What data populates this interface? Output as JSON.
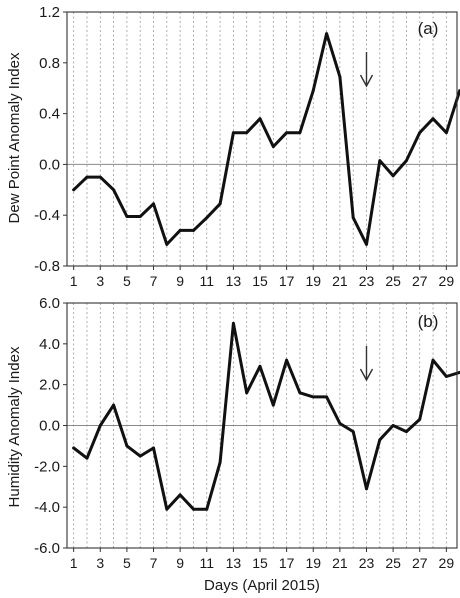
{
  "xlabel": "Days  (April 2015)",
  "chart_data": [
    {
      "type": "line",
      "label": "(a)",
      "ylabel": "Dew Point Anomaly Index",
      "xlim": [
        0.5,
        29.8
      ],
      "ylim": [
        -0.8,
        1.2
      ],
      "yticks": [
        "-0.8",
        "-0.4",
        "0.0",
        "0.4",
        "0.8",
        "1.2"
      ],
      "xticks": [
        "1",
        "3",
        "5",
        "7",
        "9",
        "11",
        "13",
        "15",
        "17",
        "19",
        "21",
        "23",
        "25",
        "27",
        "29"
      ],
      "grid": "vertical dashed, one per day",
      "annotation_arrow_day": 23,
      "series": [
        {
          "x": [
            1,
            2,
            3,
            4,
            5,
            6,
            7,
            8,
            9,
            10,
            11,
            12,
            13,
            14,
            15,
            16,
            17,
            18,
            19,
            20,
            21,
            22,
            23,
            24,
            25,
            26,
            27,
            28,
            29,
            30
          ],
          "values": [
            -0.2,
            -0.1,
            -0.1,
            -0.2,
            -0.41,
            -0.41,
            -0.31,
            -0.63,
            -0.52,
            -0.52,
            -0.42,
            -0.31,
            0.25,
            0.25,
            0.36,
            0.14,
            0.25,
            0.25,
            0.58,
            1.03,
            0.69,
            -0.42,
            -0.63,
            0.03,
            -0.09,
            0.03,
            0.25,
            0.36,
            0.25,
            0.58
          ]
        }
      ]
    },
    {
      "type": "line",
      "label": "(b)",
      "ylabel": "Humidity Anomaly Index",
      "xlim": [
        0.5,
        29.8
      ],
      "ylim": [
        -6.0,
        6.0
      ],
      "yticks": [
        "-6.0",
        "-4.0",
        "-2.0",
        "0.0",
        "2.0",
        "4.0",
        "6.0"
      ],
      "xticks": [
        "1",
        "3",
        "5",
        "7",
        "9",
        "11",
        "13",
        "15",
        "17",
        "19",
        "21",
        "23",
        "25",
        "27",
        "29"
      ],
      "grid": "vertical dashed, one per day",
      "annotation_arrow_day": 23,
      "series": [
        {
          "x": [
            1,
            2,
            3,
            4,
            5,
            6,
            7,
            8,
            9,
            10,
            11,
            12,
            13,
            14,
            15,
            16,
            17,
            18,
            19,
            20,
            21,
            22,
            23,
            24,
            25,
            26,
            27,
            28,
            29,
            30
          ],
          "values": [
            -1.1,
            -1.6,
            0.0,
            1.0,
            -1.0,
            -1.5,
            -1.1,
            -4.1,
            -3.4,
            -4.1,
            -4.1,
            -1.8,
            5.0,
            1.6,
            2.9,
            1.0,
            3.2,
            1.6,
            1.4,
            1.4,
            0.1,
            -0.3,
            -3.1,
            -0.7,
            0.0,
            -0.3,
            0.3,
            3.2,
            2.4,
            2.6
          ]
        }
      ]
    }
  ]
}
